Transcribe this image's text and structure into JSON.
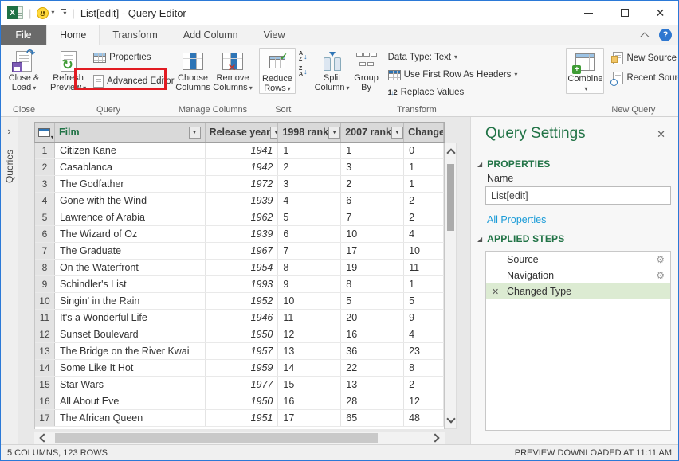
{
  "window": {
    "title": "List[edit] - Query Editor"
  },
  "tabs": {
    "file": "File",
    "items": [
      "Home",
      "Transform",
      "Add Column",
      "View"
    ],
    "active": "Home"
  },
  "ribbon": {
    "close_group": {
      "label": "Close",
      "close_load": "Close & Load"
    },
    "query_group": {
      "label": "Query",
      "refresh": "Refresh Preview",
      "properties": "Properties",
      "advanced_editor": "Advanced Editor"
    },
    "manage_columns_group": {
      "label": "Manage Columns",
      "choose_columns": "Choose Columns",
      "remove_columns": "Remove Columns"
    },
    "sort_group": {
      "label": "Sort",
      "reduce_rows": "Reduce Rows"
    },
    "transform_group": {
      "label": "Transform",
      "split_column": "Split Column",
      "group_by": "Group By",
      "data_type": "Data Type: Text",
      "first_row": "Use First Row As Headers",
      "replace_values": "Replace Values"
    },
    "new_query_group": {
      "label": "New Query",
      "combine": "Combine",
      "new_source": "New Source",
      "recent_sources": "Recent Sources"
    }
  },
  "sidebar": {
    "label": "Queries"
  },
  "grid": {
    "columns": [
      "Film",
      "Release year",
      "1998 rank",
      "2007 rank",
      "Change"
    ],
    "rows": [
      [
        "1",
        "Citizen Kane",
        "1941",
        "1",
        "1",
        "0"
      ],
      [
        "2",
        "Casablanca",
        "1942",
        "2",
        "3",
        "1"
      ],
      [
        "3",
        "The Godfather",
        "1972",
        "3",
        "2",
        "1"
      ],
      [
        "4",
        "Gone with the Wind",
        "1939",
        "4",
        "6",
        "2"
      ],
      [
        "5",
        "Lawrence of Arabia",
        "1962",
        "5",
        "7",
        "2"
      ],
      [
        "6",
        "The Wizard of Oz",
        "1939",
        "6",
        "10",
        "4"
      ],
      [
        "7",
        "The Graduate",
        "1967",
        "7",
        "17",
        "10"
      ],
      [
        "8",
        "On the Waterfront",
        "1954",
        "8",
        "19",
        "11"
      ],
      [
        "9",
        "Schindler's List",
        "1993",
        "9",
        "8",
        "1"
      ],
      [
        "10",
        "Singin' in the Rain",
        "1952",
        "10",
        "5",
        "5"
      ],
      [
        "11",
        "It's a Wonderful Life",
        "1946",
        "11",
        "20",
        "9"
      ],
      [
        "12",
        "Sunset Boulevard",
        "1950",
        "12",
        "16",
        "4"
      ],
      [
        "13",
        "The Bridge on the River Kwai",
        "1957",
        "13",
        "36",
        "23"
      ],
      [
        "14",
        "Some Like It Hot",
        "1959",
        "14",
        "22",
        "8"
      ],
      [
        "15",
        "Star Wars",
        "1977",
        "15",
        "13",
        "2"
      ],
      [
        "16",
        "All About Eve",
        "1950",
        "16",
        "28",
        "12"
      ],
      [
        "17",
        "The African Queen",
        "1951",
        "17",
        "65",
        "48"
      ]
    ]
  },
  "query_settings": {
    "title": "Query Settings",
    "properties": {
      "heading": "PROPERTIES",
      "name_label": "Name",
      "name_value": "List[edit]",
      "all_properties": "All Properties"
    },
    "applied_steps": {
      "heading": "APPLIED STEPS",
      "steps": [
        {
          "label": "Source",
          "gear": true,
          "selected": false
        },
        {
          "label": "Navigation",
          "gear": true,
          "selected": false
        },
        {
          "label": "Changed Type",
          "gear": false,
          "selected": true
        }
      ]
    }
  },
  "status_bar": {
    "left": "5 COLUMNS, 123 ROWS",
    "right": "PREVIEW DOWNLOADED AT 11:11 AM"
  },
  "colors": {
    "accent_green": "#217346",
    "selection_green": "#dcebd2",
    "annotation_red": "#e11b22",
    "link_blue": "#1a9bd7",
    "window_border": "#2b79d7"
  }
}
